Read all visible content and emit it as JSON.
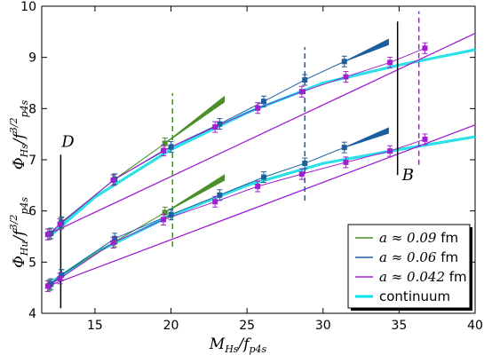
{
  "chart_data": {
    "type": "scatter",
    "xlabel_main": "M",
    "xlabel_sub": "Hs",
    "xlabel_den": "/f",
    "xlabel_den_sub": "p4s",
    "ylabel_upper": {
      "main": "Φ",
      "sub": "Hs",
      "den": "/f",
      "den_sub": "p4s",
      "exp": "3/2"
    },
    "ylabel_lower": {
      "main": "Φ",
      "sub": "Hu",
      "den": "/f",
      "den_sub": "p4s",
      "exp": "3/2"
    },
    "xlim": [
      11.5,
      40
    ],
    "ylim": [
      4,
      10
    ],
    "xticks": [
      15,
      20,
      25,
      30,
      35,
      40
    ],
    "yticks": [
      4,
      5,
      6,
      7,
      8,
      9,
      10
    ],
    "colors": {
      "a009": "#4a8f2a",
      "a006": "#1b5f9e",
      "a0042": "#a020d0",
      "continuum": "#00e5ee"
    },
    "legend": {
      "position": "lower-right",
      "entries": [
        {
          "key": "a009",
          "math": "a ≈ 0.09",
          "unit": " fm"
        },
        {
          "key": "a006",
          "math": "a ≈ 0.06",
          "unit": " fm"
        },
        {
          "key": "a0042",
          "math": "a ≈ 0.042",
          "unit": " fm"
        },
        {
          "key": "continuum",
          "math": "",
          "unit": "continuum"
        }
      ]
    },
    "annotations": [
      {
        "text": "D",
        "x": 12.8,
        "y": 7.25
      },
      {
        "text": "B",
        "x": 35.2,
        "y": 6.6
      }
    ],
    "vlines": [
      {
        "key": "black",
        "style": "solid",
        "x": 12.75,
        "y": [
          4.1,
          7.1
        ]
      },
      {
        "key": "a009",
        "style": "dashed",
        "x": 20.1,
        "y": [
          5.3,
          8.3
        ]
      },
      {
        "key": "a006",
        "style": "dashed",
        "x": 28.8,
        "y": [
          6.2,
          9.2
        ]
      },
      {
        "key": "black",
        "style": "solid",
        "x": 34.9,
        "y": [
          6.7,
          9.7
        ]
      },
      {
        "key": "a0042",
        "style": "dashed",
        "x": 36.3,
        "y": [
          6.9,
          9.9
        ]
      }
    ],
    "series": [
      {
        "key": "a009",
        "group": "upper",
        "points": [
          [
            12.0,
            5.55
          ],
          [
            12.8,
            5.76
          ],
          [
            16.3,
            6.62
          ],
          [
            19.6,
            7.32
          ]
        ],
        "band": [
          [
            19.6,
            7.32
          ],
          [
            23.5,
            8.18
          ]
        ]
      },
      {
        "key": "a009",
        "group": "lower",
        "points": [
          [
            12.0,
            4.55
          ],
          [
            12.8,
            4.75
          ],
          [
            16.3,
            5.4
          ],
          [
            19.6,
            5.97
          ]
        ],
        "band": [
          [
            19.6,
            5.97
          ],
          [
            23.5,
            6.65
          ]
        ]
      },
      {
        "key": "a006",
        "group": "upper",
        "points": [
          [
            12.1,
            5.56
          ],
          [
            12.8,
            5.78
          ],
          [
            16.3,
            6.62
          ],
          [
            20.0,
            7.25
          ],
          [
            23.2,
            7.7
          ],
          [
            26.1,
            8.14
          ],
          [
            28.8,
            8.56
          ],
          [
            31.4,
            8.92
          ]
        ],
        "band": [
          [
            31.4,
            8.92
          ],
          [
            34.3,
            9.3
          ]
        ]
      },
      {
        "key": "a006",
        "group": "lower",
        "points": [
          [
            12.1,
            4.57
          ],
          [
            12.8,
            4.75
          ],
          [
            16.3,
            5.46
          ],
          [
            20.0,
            5.93
          ],
          [
            23.2,
            6.31
          ],
          [
            26.1,
            6.66
          ],
          [
            28.8,
            6.93
          ],
          [
            31.4,
            7.24
          ]
        ],
        "band": [
          [
            31.4,
            7.24
          ],
          [
            34.3,
            7.57
          ]
        ]
      },
      {
        "key": "a0042",
        "group": "upper",
        "points": [
          [
            11.9,
            5.54
          ],
          [
            12.7,
            5.74
          ],
          [
            16.2,
            6.6
          ],
          [
            19.5,
            7.18
          ],
          [
            22.9,
            7.64
          ],
          [
            25.7,
            8.01
          ],
          [
            28.6,
            8.33
          ],
          [
            31.5,
            8.62
          ],
          [
            34.4,
            8.9
          ],
          [
            36.7,
            9.18
          ]
        ],
        "line": [
          [
            11.9,
            5.54
          ],
          [
            40,
            9.47
          ]
        ]
      },
      {
        "key": "a0042",
        "group": "lower",
        "points": [
          [
            11.9,
            4.53
          ],
          [
            12.7,
            4.68
          ],
          [
            16.2,
            5.38
          ],
          [
            19.5,
            5.83
          ],
          [
            22.9,
            6.18
          ],
          [
            25.7,
            6.48
          ],
          [
            28.6,
            6.72
          ],
          [
            31.5,
            6.95
          ],
          [
            34.4,
            7.17
          ],
          [
            36.7,
            7.4
          ]
        ],
        "line": [
          [
            11.9,
            4.53
          ],
          [
            40,
            7.68
          ]
        ]
      },
      {
        "key": "continuum",
        "group": "upper",
        "curve": [
          [
            12.0,
            5.5
          ],
          [
            15.0,
            6.27
          ],
          [
            20.0,
            7.2
          ],
          [
            25.0,
            7.92
          ],
          [
            30.0,
            8.5
          ],
          [
            35.0,
            8.85
          ],
          [
            40.0,
            9.15
          ]
        ]
      },
      {
        "key": "continuum",
        "group": "lower",
        "curve": [
          [
            12.0,
            4.58
          ],
          [
            15.0,
            5.18
          ],
          [
            20.0,
            5.91
          ],
          [
            25.0,
            6.5
          ],
          [
            30.0,
            6.93
          ],
          [
            35.0,
            7.2
          ],
          [
            40.0,
            7.45
          ]
        ]
      }
    ]
  }
}
